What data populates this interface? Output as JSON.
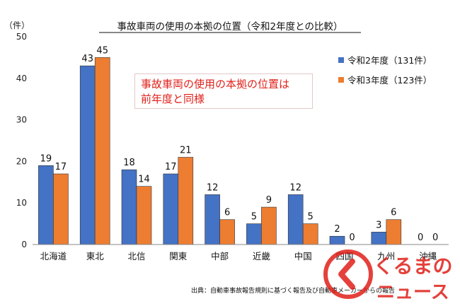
{
  "chart_data": {
    "type": "bar",
    "title": "事故車両の使用の本拠の位置（令和2年度との比較）",
    "unit_label": "（件）",
    "categories": [
      "北海道",
      "東北",
      "北信",
      "関東",
      "中部",
      "近畿",
      "中国",
      "四国",
      "九州",
      "沖縄"
    ],
    "series": [
      {
        "name": "令和2年度（131件）",
        "color": "#4472c4",
        "values": [
          19,
          43,
          18,
          17,
          12,
          5,
          12,
          2,
          3,
          0
        ]
      },
      {
        "name": "令和3年度（123件）",
        "color": "#ed7d31",
        "values": [
          17,
          45,
          14,
          21,
          6,
          9,
          5,
          0,
          6,
          0
        ]
      }
    ],
    "ylim": [
      0,
      50
    ],
    "yticks": [
      0,
      10,
      20,
      30,
      40,
      50
    ],
    "grid": false,
    "legend": "top-right",
    "annotation": [
      "事故車両の使用の本拠の位置は",
      "前年度と同様"
    ],
    "source": "出典：自動車事故報告規則に基づく報告及び自動車メーカーからの報告"
  },
  "logo": {
    "line1": "くるまの",
    "line2": "ニュース",
    "color": "#e0201a"
  }
}
